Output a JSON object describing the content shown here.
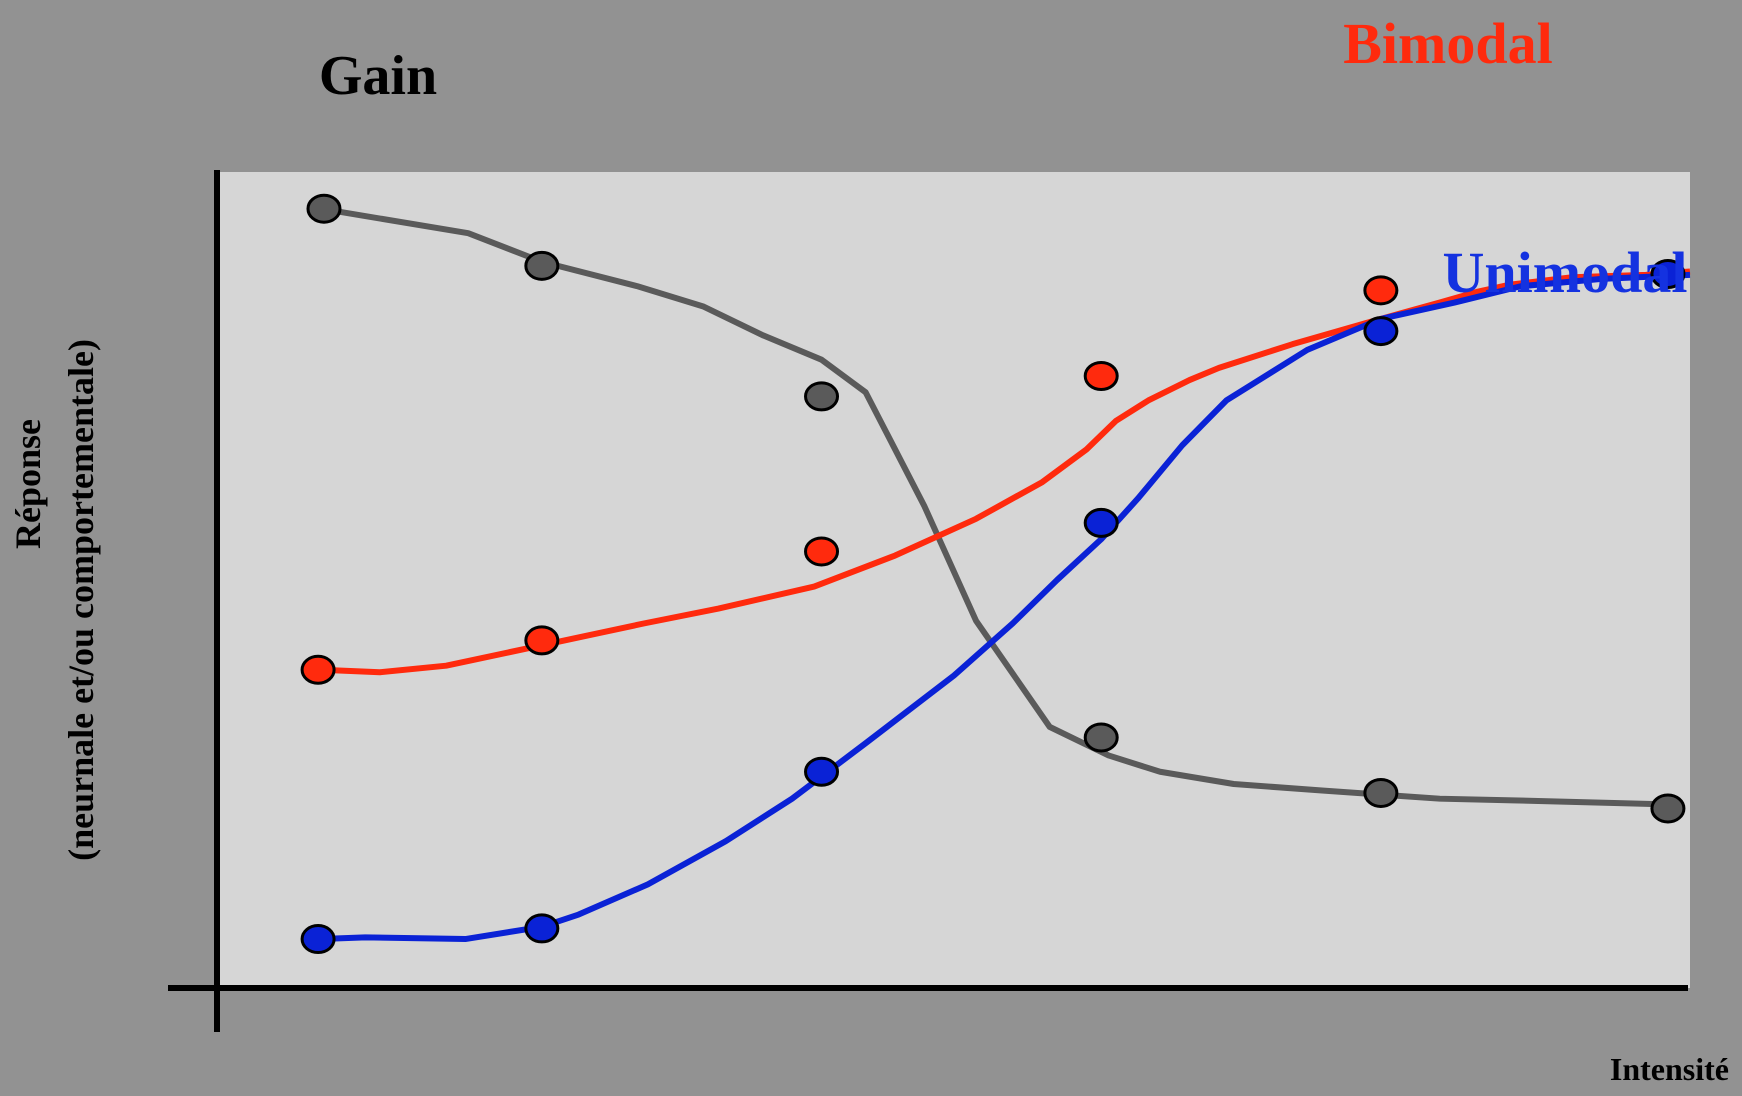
{
  "chart_data": {
    "type": "line",
    "title": "",
    "xlabel": "Intensité",
    "ylabel": [
      "Réponse",
      "(neurnale et/ou comportementale)"
    ],
    "annotation": "Gain",
    "xlim": [
      0,
      1
    ],
    "ylim": [
      0,
      1
    ],
    "grid": false,
    "series": [
      {
        "name": "Bimodal",
        "color": "#ff2a0d",
        "line": [
          [
            0.07,
            0.39
          ],
          [
            0.11,
            0.387
          ],
          [
            0.155,
            0.395
          ],
          [
            0.22,
            0.42
          ],
          [
            0.29,
            0.447
          ],
          [
            0.34,
            0.465
          ],
          [
            0.405,
            0.492
          ],
          [
            0.46,
            0.53
          ],
          [
            0.515,
            0.575
          ],
          [
            0.56,
            0.62
          ],
          [
            0.59,
            0.66
          ],
          [
            0.61,
            0.695
          ],
          [
            0.632,
            0.72
          ],
          [
            0.66,
            0.745
          ],
          [
            0.68,
            0.76
          ],
          [
            0.73,
            0.789
          ],
          [
            0.78,
            0.815
          ],
          [
            0.83,
            0.84
          ],
          [
            0.855,
            0.853
          ],
          [
            0.878,
            0.862
          ],
          [
            0.92,
            0.871
          ],
          [
            0.97,
            0.874
          ],
          [
            1.0,
            0.878
          ]
        ],
        "markers": [
          [
            0.068,
            0.39
          ],
          [
            0.22,
            0.426
          ],
          [
            0.41,
            0.535
          ],
          [
            0.6,
            0.75
          ],
          [
            0.79,
            0.855
          ]
        ]
      },
      {
        "name": "Unimodal",
        "color": "#0a22d6",
        "line": [
          [
            0.07,
            0.06
          ],
          [
            0.1,
            0.062
          ],
          [
            0.168,
            0.06
          ],
          [
            0.22,
            0.075
          ],
          [
            0.245,
            0.09
          ],
          [
            0.292,
            0.127
          ],
          [
            0.345,
            0.18
          ],
          [
            0.39,
            0.232
          ],
          [
            0.44,
            0.3
          ],
          [
            0.5,
            0.383
          ],
          [
            0.54,
            0.447
          ],
          [
            0.57,
            0.5
          ],
          [
            0.6,
            0.55
          ],
          [
            0.625,
            0.6
          ],
          [
            0.655,
            0.665
          ],
          [
            0.685,
            0.72
          ],
          [
            0.74,
            0.782
          ],
          [
            0.79,
            0.82
          ],
          [
            0.84,
            0.84
          ],
          [
            0.885,
            0.86
          ],
          [
            0.94,
            0.869
          ],
          [
            1.0,
            0.874
          ]
        ],
        "markers": [
          [
            0.068,
            0.06
          ],
          [
            0.22,
            0.073
          ],
          [
            0.41,
            0.265
          ],
          [
            0.6,
            0.57
          ],
          [
            0.79,
            0.805
          ],
          [
            0.985,
            0.875
          ]
        ]
      },
      {
        "name": "Gain",
        "color": "#5a5a5a",
        "line": [
          [
            0.07,
            0.955
          ],
          [
            0.17,
            0.925
          ],
          [
            0.22,
            0.89
          ],
          [
            0.285,
            0.86
          ],
          [
            0.33,
            0.835
          ],
          [
            0.37,
            0.8
          ],
          [
            0.41,
            0.77
          ],
          [
            0.44,
            0.73
          ],
          [
            0.48,
            0.59
          ],
          [
            0.515,
            0.45
          ],
          [
            0.565,
            0.32
          ],
          [
            0.605,
            0.285
          ],
          [
            0.64,
            0.265
          ],
          [
            0.69,
            0.25
          ],
          [
            0.75,
            0.242
          ],
          [
            0.79,
            0.237
          ],
          [
            0.83,
            0.232
          ],
          [
            0.88,
            0.23
          ],
          [
            0.985,
            0.225
          ]
        ],
        "markers": [
          [
            0.072,
            0.955
          ],
          [
            0.22,
            0.885
          ],
          [
            0.41,
            0.725
          ],
          [
            0.6,
            0.307
          ],
          [
            0.79,
            0.239
          ],
          [
            0.985,
            0.22
          ]
        ]
      }
    ]
  }
}
